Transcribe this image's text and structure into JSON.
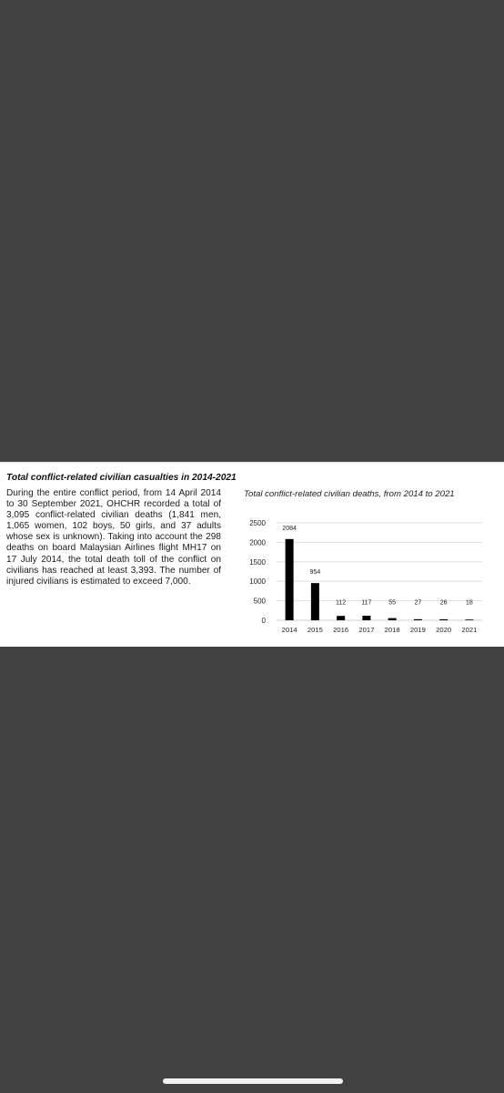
{
  "document": {
    "section_title": "Total conflict-related civilian casualties in 2014-2021",
    "body_text": "During the entire conflict period, from 14 April 2014 to 30 September 2021, OHCHR recorded a total of 3,095 conflict-related civilian deaths (1,841 men, 1,065 women, 102 boys, 50 girls, and 37 adults whose sex is unknown). Taking into account the 298 deaths on board Malaysian Airlines flight MH17 on 17 July 2014, the total death toll of the conflict on civilians has reached at least 3,393. The number of injured civilians is estimated to exceed 7,000."
  },
  "chart_data": {
    "type": "bar",
    "title": "Total conflict-related civilian deaths, from 2014 to 2021",
    "categories": [
      "2014",
      "2015",
      "2016",
      "2017",
      "2018",
      "2019",
      "2020",
      "2021"
    ],
    "values": [
      2084,
      954,
      112,
      117,
      55,
      27,
      26,
      18
    ],
    "data_labels": [
      "2084",
      "954",
      "112",
      "117",
      "55",
      "27",
      "26",
      "18"
    ],
    "yticks": [
      "0",
      "500",
      "1000",
      "1500",
      "2000",
      "2500"
    ],
    "ylim": [
      0,
      2500
    ],
    "grid": true,
    "bar_color": "#000000",
    "grid_color": "#d9d9d9"
  }
}
